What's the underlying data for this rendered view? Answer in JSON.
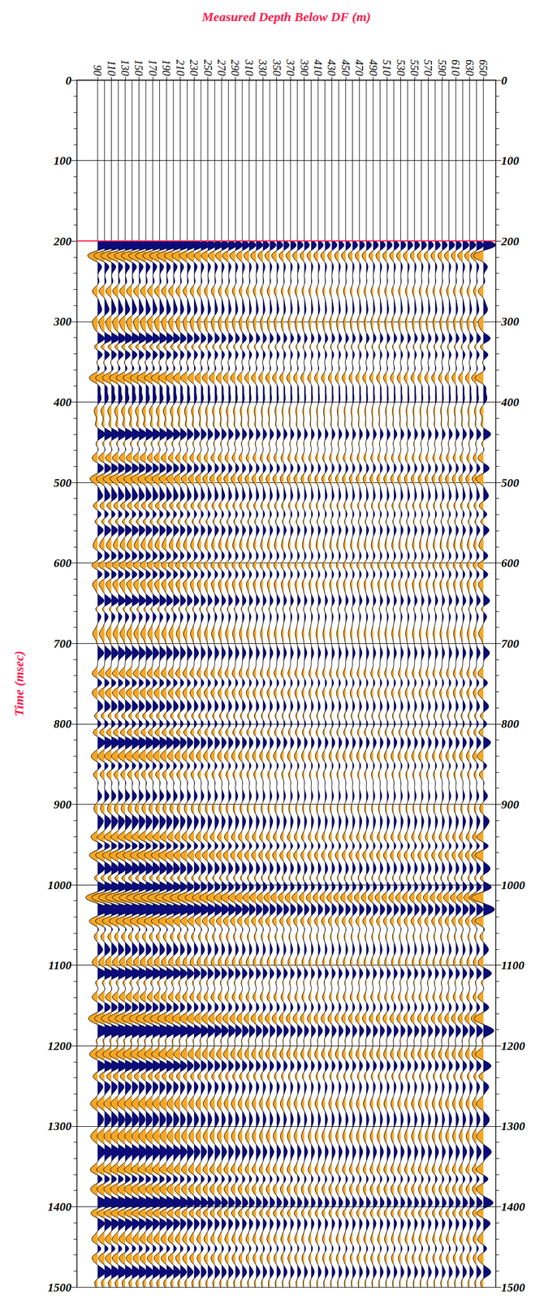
{
  "chart_data": {
    "type": "wiggle",
    "x_label": "Measured Depth Below DF (m)",
    "y_label": "Time (msec)",
    "x": [
      90,
      100,
      110,
      120,
      130,
      140,
      150,
      160,
      170,
      180,
      190,
      200,
      210,
      220,
      230,
      240,
      250,
      260,
      270,
      280,
      290,
      300,
      310,
      320,
      330,
      340,
      350,
      360,
      370,
      380,
      390,
      400,
      410,
      420,
      430,
      440,
      450,
      460,
      470,
      480,
      490,
      500,
      510,
      520,
      530,
      540,
      550,
      560,
      570,
      580,
      590,
      600,
      610,
      620,
      630,
      640,
      650
    ],
    "xlim": [
      60,
      668
    ],
    "xticks": [
      90,
      110,
      130,
      150,
      170,
      190,
      210,
      230,
      250,
      270,
      290,
      310,
      330,
      350,
      370,
      390,
      410,
      430,
      450,
      470,
      490,
      510,
      530,
      550,
      570,
      590,
      610,
      630,
      650
    ],
    "ylim": [
      0,
      1500
    ],
    "yticks": [
      0,
      100,
      200,
      300,
      400,
      500,
      600,
      700,
      800,
      900,
      1000,
      1100,
      1200,
      1300,
      1400,
      1500
    ],
    "start_time": 200,
    "events": {
      "time": [
        205,
        218,
        232,
        262,
        285,
        300,
        322,
        340,
        370,
        395,
        412,
        440,
        470,
        495,
        518,
        540,
        558,
        580,
        603,
        625,
        648,
        665,
        688,
        712,
        738,
        760,
        780,
        800,
        822,
        842,
        862,
        890,
        920,
        942,
        962,
        982,
        1002,
        1016,
        1030,
        1046,
        1062,
        1082,
        1110,
        1140,
        1165,
        1182,
        1210,
        1226,
        1250,
        1272,
        1292,
        1312,
        1332,
        1355,
        1376,
        1396,
        1420,
        1442,
        1462,
        1482
      ],
      "amplitude": [
        1.3,
        -0.5,
        0.3,
        -0.6,
        0.3,
        -0.4,
        1.0,
        0.8,
        -1.0,
        0.3,
        -0.3,
        0.9,
        -0.7,
        -0.9,
        0.6,
        0.7,
        0.8,
        -0.5,
        -0.8,
        -0.6,
        0.9,
        0.6,
        -0.5,
        0.7,
        -0.7,
        -0.6,
        0.6,
        0.6,
        0.8,
        -0.7,
        -0.6,
        0.5,
        0.6,
        -0.9,
        -1.0,
        0.7,
        0.7,
        -0.9,
        0.6,
        -1.0,
        -0.6,
        0.5,
        1.0,
        -0.7,
        -0.8,
        1.0,
        -0.7,
        0.7,
        0.6,
        -0.7,
        0.5,
        -0.6,
        0.8,
        -0.9,
        -0.7,
        1.1,
        0.8,
        -0.7,
        -0.6,
        0.8
      ]
    },
    "trace_gain": [
      1.2,
      1.3,
      1.3,
      1.3,
      1.3,
      1.3,
      1.25,
      1.25,
      1.2,
      1.2,
      1.15,
      1.1,
      1.0,
      0.95,
      0.9,
      0.85,
      0.8,
      0.8,
      0.75,
      0.75,
      0.7,
      0.7,
      0.65,
      0.65,
      0.6,
      0.6,
      0.6,
      0.55,
      0.55,
      0.55,
      0.5,
      0.5,
      0.5,
      0.5,
      0.5,
      0.5,
      0.5,
      0.5,
      0.5,
      0.5,
      0.5,
      0.5,
      0.5,
      0.5,
      0.5,
      0.5,
      0.5,
      0.5,
      0.5,
      0.5,
      0.5,
      0.55,
      0.55,
      0.6,
      0.6,
      0.7,
      1.2
    ],
    "colors": [
      "#0b0b7a",
      "#f7a623"
    ],
    "grid": true
  }
}
